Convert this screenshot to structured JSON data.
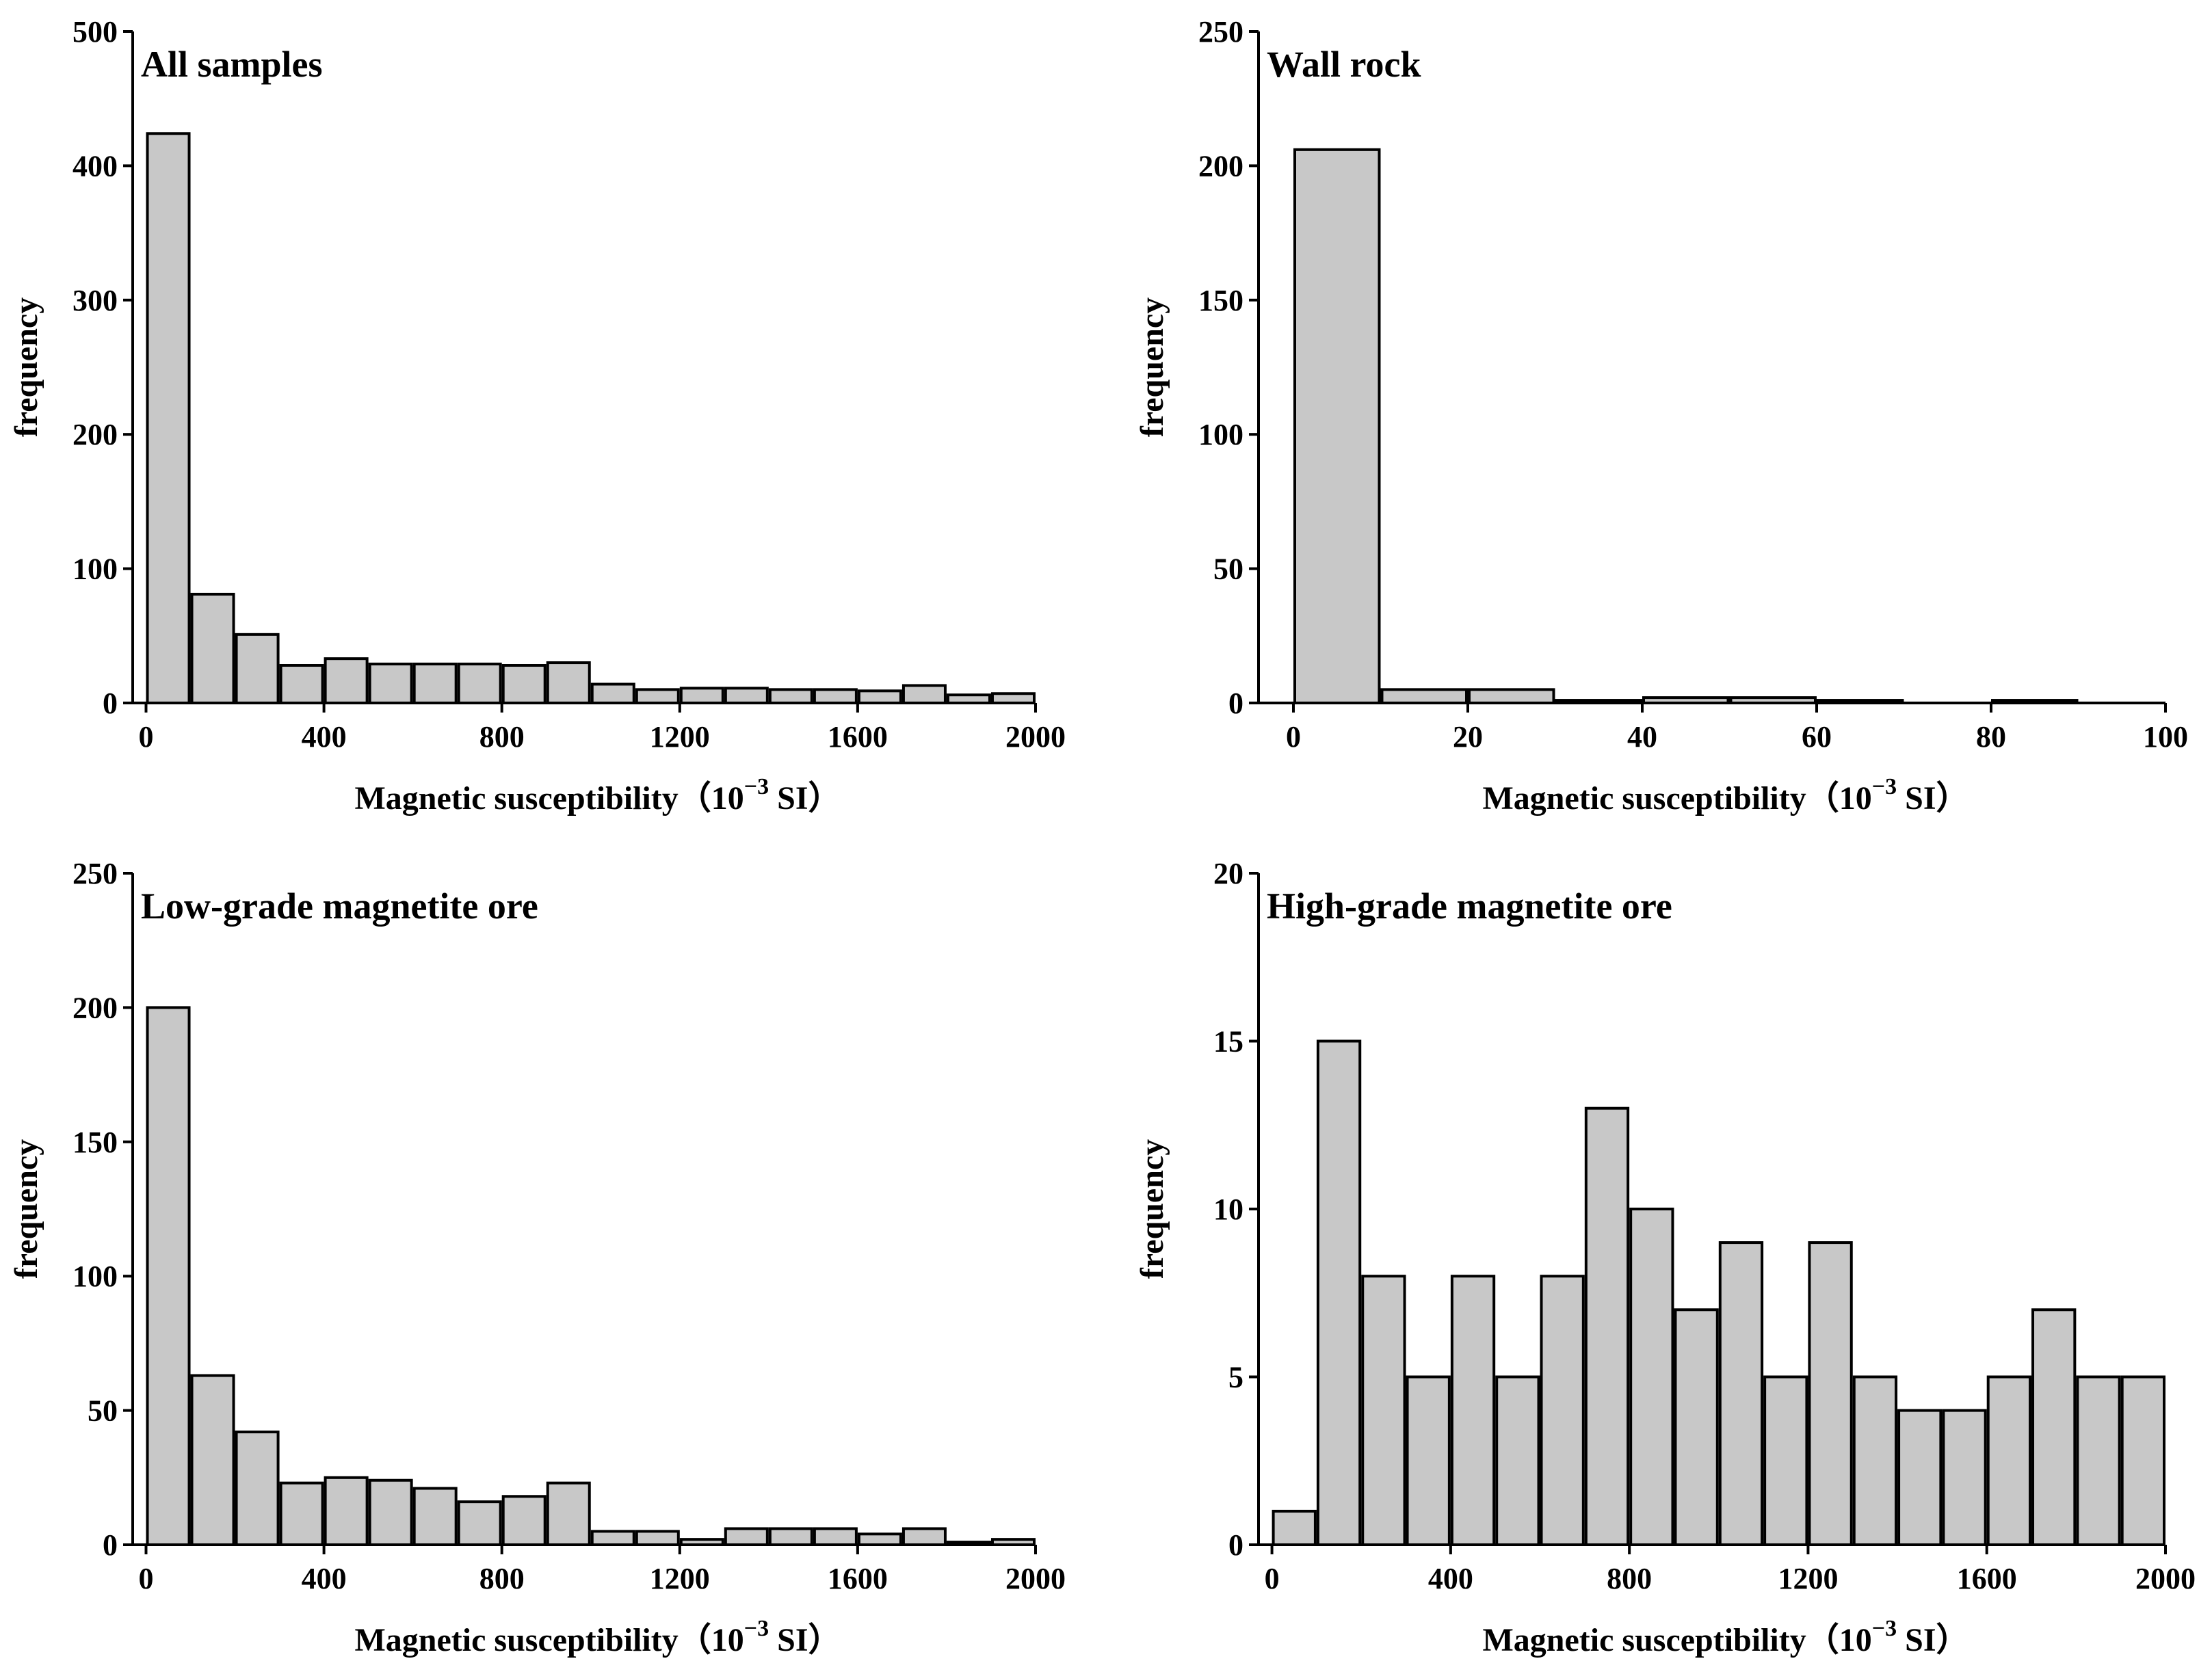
{
  "colors": {
    "bar_fill": "#c8c8c8",
    "bar_stroke": "#000000",
    "axis": "#000000"
  },
  "chart_data": [
    {
      "type": "bar",
      "title": "All samples",
      "xlabel": "Magnetic susceptibility（10",
      "xlabel_exp": "−3",
      "xlabel_suffix": " SI）",
      "ylabel": "frequency",
      "xlim": [
        -30,
        2000
      ],
      "ylim": [
        0,
        500
      ],
      "xticks": [
        0,
        400,
        800,
        1200,
        1600,
        2000
      ],
      "yticks": [
        0,
        100,
        200,
        300,
        400,
        500
      ],
      "bin_width": 100,
      "bin_starts": [
        0,
        100,
        200,
        300,
        400,
        500,
        600,
        700,
        800,
        900,
        1000,
        1100,
        1200,
        1300,
        1400,
        1500,
        1600,
        1700,
        1800,
        1900
      ],
      "values": [
        424,
        81,
        51,
        28,
        33,
        29,
        29,
        29,
        28,
        30,
        14,
        10,
        11,
        11,
        10,
        10,
        9,
        13,
        6,
        7
      ]
    },
    {
      "type": "bar",
      "title": "Wall rock",
      "xlabel": "Magnetic susceptibility（10",
      "xlabel_exp": "−3",
      "xlabel_suffix": " SI）",
      "ylabel": "frequency",
      "xlim": [
        -4,
        100
      ],
      "ylim": [
        0,
        250
      ],
      "xticks": [
        0,
        20,
        40,
        60,
        80,
        100
      ],
      "yticks": [
        0,
        50,
        100,
        150,
        200,
        250
      ],
      "bin_width": 10,
      "bin_starts": [
        0,
        10,
        20,
        30,
        40,
        50,
        60,
        70,
        80,
        90
      ],
      "values": [
        206,
        5,
        5,
        1,
        2,
        2,
        1,
        0,
        1,
        0
      ]
    },
    {
      "type": "bar",
      "title": "Low-grade magnetite ore",
      "xlabel": "Magnetic susceptibility（10",
      "xlabel_exp": "−3",
      "xlabel_suffix": " SI）",
      "ylabel": "frequency",
      "xlim": [
        -30,
        2000
      ],
      "ylim": [
        0,
        250
      ],
      "xticks": [
        0,
        400,
        800,
        1200,
        1600,
        2000
      ],
      "yticks": [
        0,
        50,
        100,
        150,
        200,
        250
      ],
      "bin_width": 100,
      "bin_starts": [
        0,
        100,
        200,
        300,
        400,
        500,
        600,
        700,
        800,
        900,
        1000,
        1100,
        1200,
        1300,
        1400,
        1500,
        1600,
        1700,
        1800,
        1900
      ],
      "values": [
        200,
        63,
        42,
        23,
        25,
        24,
        21,
        16,
        18,
        23,
        5,
        5,
        2,
        6,
        6,
        6,
        4,
        6,
        1,
        2
      ]
    },
    {
      "type": "bar",
      "title": "High-grade magnetite ore",
      "xlabel": "Magnetic susceptibility（10",
      "xlabel_exp": "−3",
      "xlabel_suffix": " SI）",
      "ylabel": "frequency",
      "xlim": [
        -30,
        2000
      ],
      "ylim": [
        0,
        20
      ],
      "xticks": [
        0,
        400,
        800,
        1200,
        1600,
        2000
      ],
      "yticks": [
        0,
        5,
        10,
        15,
        20
      ],
      "bin_width": 100,
      "bin_starts": [
        0,
        100,
        200,
        300,
        400,
        500,
        600,
        700,
        800,
        900,
        1000,
        1100,
        1200,
        1300,
        1400,
        1500,
        1600,
        1700,
        1800,
        1900
      ],
      "values": [
        1,
        15,
        8,
        5,
        8,
        5,
        8,
        13,
        10,
        7,
        9,
        5,
        9,
        5,
        4,
        4,
        5,
        7,
        5,
        5
      ]
    }
  ]
}
